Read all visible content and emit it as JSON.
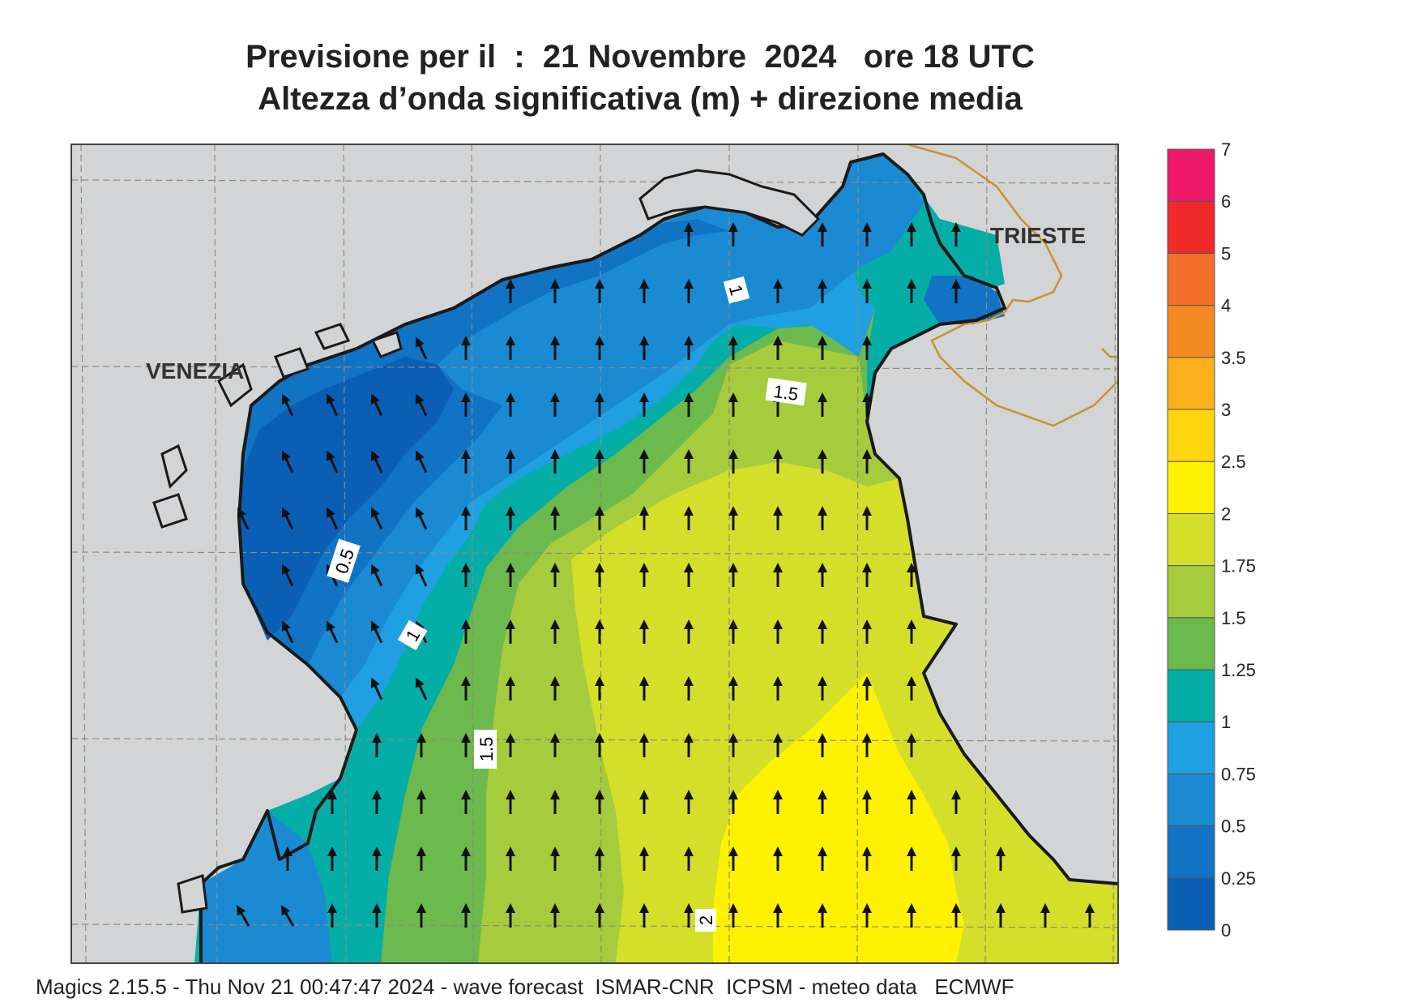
{
  "header": {
    "title_line1": "Previsione per il  :  21 Novembre  2024   ore 18 UTC",
    "title_line2": "Altezza d’onda significativa (m) + direzione media"
  },
  "map": {
    "labels": {
      "venezia": "VENEZIA",
      "trieste": "TRIESTE"
    },
    "contour_labels": [
      "1",
      "1.5",
      "0.5",
      "1",
      "1.5",
      "2"
    ],
    "arrow_direction": "north",
    "land_color": "#d3d4d6",
    "coast_color": "#1a1a1a",
    "border_color": "#c8922e"
  },
  "legend": {
    "levels": [
      "0",
      "0.25",
      "0.5",
      "0.75",
      "1",
      "1.25",
      "1.5",
      "1.75",
      "2",
      "2.5",
      "3",
      "3.5",
      "4",
      "5",
      "6",
      "7"
    ],
    "colors": [
      "#0a5fb4",
      "#1173c4",
      "#1a8ad3",
      "#1fa0e2",
      "#05ada7",
      "#6cb94e",
      "#a6cb3d",
      "#d4df2a",
      "#fef200",
      "#fcd50e",
      "#f9b01c",
      "#f58a22",
      "#f3702a",
      "#ee2a2a",
      "#ed1966"
    ]
  },
  "footer": {
    "text": "Magics 2.15.5 - Thu Nov 21 00:47:47 2024 - wave forecast  ISMAR-CNR  ICPSM - meteo data   ECMWF"
  }
}
